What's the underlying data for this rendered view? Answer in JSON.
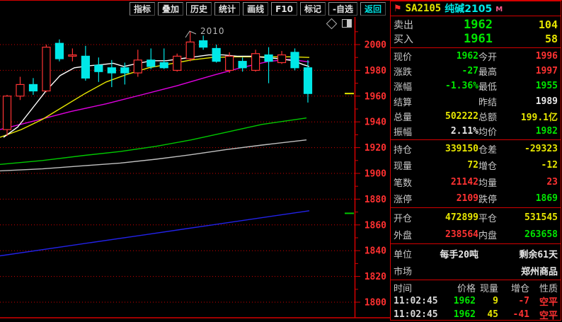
{
  "toolbar": {
    "buttons": [
      {
        "label": "指标"
      },
      {
        "label": "叠加"
      },
      {
        "label": "历史"
      },
      {
        "label": "统计"
      },
      {
        "label": "画线"
      },
      {
        "label": "F10"
      },
      {
        "label": "标记"
      },
      {
        "label": "-自选"
      },
      {
        "label": "返回",
        "accent": true
      }
    ]
  },
  "chart": {
    "annotation": {
      "text": "2010"
    },
    "icons": [
      {
        "name": "diamond-icon"
      },
      {
        "name": "split-square-icon"
      }
    ],
    "colors": {
      "axis": "#d40000",
      "label": "#ff3030",
      "up": "#ff3434",
      "down": "#00e8e8",
      "marker_price": "#e6e600",
      "marker_limit_down": "#00c800"
    }
  },
  "chart_data": {
    "type": "candlestick",
    "title": "纯碱2105 K线",
    "ylim": [
      1800,
      2020
    ],
    "y_ticks": [
      2000,
      1980,
      1960,
      1940,
      1920,
      1900,
      1880,
      1860,
      1840,
      1820,
      1800
    ],
    "grid": "red-dotted-horizontal",
    "legend_position": "none",
    "candles_ohlc_dir": [
      [
        1934,
        1961,
        1929,
        1960,
        "u"
      ],
      [
        1960,
        1975,
        1957,
        1969,
        "u"
      ],
      [
        1969,
        1974,
        1961,
        1964,
        "d"
      ],
      [
        1964,
        2000,
        1963,
        1998,
        "u"
      ],
      [
        2001,
        2004,
        1987,
        1989,
        "d"
      ],
      [
        1991,
        1997,
        1987,
        1992,
        "u"
      ],
      [
        1991,
        1999,
        1972,
        1974,
        "d"
      ],
      [
        1984,
        1990,
        1971,
        1979,
        "d"
      ],
      [
        1982,
        1988,
        1967,
        1978,
        "d"
      ],
      [
        1982,
        1986,
        1969,
        1978,
        "d"
      ],
      [
        1978,
        1996,
        1975,
        1988,
        "u"
      ],
      [
        1988,
        1997,
        1981,
        1983,
        "d"
      ],
      [
        1986,
        1997,
        1981,
        1982,
        "d"
      ],
      [
        1980,
        1993,
        1979,
        1991,
        "u"
      ],
      [
        1989,
        2010,
        1987,
        2002,
        "u"
      ],
      [
        2003,
        2007,
        1996,
        1998,
        "d"
      ],
      [
        1997,
        2000,
        1986,
        1987,
        "d"
      ],
      [
        1980,
        1994,
        1978,
        1991,
        "u"
      ],
      [
        1987,
        1990,
        1979,
        1982,
        "d"
      ],
      [
        1980,
        1996,
        1979,
        1993,
        "u"
      ],
      [
        1992,
        1998,
        1970,
        1987,
        "d"
      ],
      [
        1986,
        1995,
        1985,
        1992,
        "u"
      ],
      [
        1994,
        1997,
        1980,
        1982,
        "d"
      ],
      [
        1982,
        1988,
        1955,
        1962,
        "d"
      ]
    ],
    "series": [
      {
        "name": "ma-blue",
        "color": "#2222e8",
        "points": [
          [
            0,
            1836
          ],
          [
            100,
            1844
          ],
          [
            200,
            1852
          ],
          [
            300,
            1860
          ],
          [
            437,
            1871
          ]
        ]
      },
      {
        "name": "ma-gray",
        "color": "#c0c0c0",
        "points": [
          [
            0,
            1902
          ],
          [
            60,
            1903.5
          ],
          [
            120,
            1906
          ],
          [
            170,
            1908
          ],
          [
            220,
            1911
          ],
          [
            270,
            1914.5
          ],
          [
            320,
            1918.5
          ],
          [
            370,
            1922
          ],
          [
            433,
            1926
          ]
        ]
      },
      {
        "name": "ma-green",
        "color": "#00c800",
        "points": [
          [
            0,
            1907
          ],
          [
            60,
            1910
          ],
          [
            120,
            1914
          ],
          [
            170,
            1917
          ],
          [
            220,
            1921
          ],
          [
            270,
            1926
          ],
          [
            320,
            1932
          ],
          [
            370,
            1938
          ],
          [
            433,
            1943
          ]
        ]
      },
      {
        "name": "ma-magenta",
        "color": "#e000e0",
        "points": [
          [
            0,
            1934
          ],
          [
            50,
            1941
          ],
          [
            100,
            1948
          ],
          [
            150,
            1954
          ],
          [
            200,
            1961
          ],
          [
            250,
            1968
          ],
          [
            300,
            1976
          ],
          [
            340,
            1982
          ],
          [
            380,
            1987
          ],
          [
            410,
            1988.5
          ],
          [
            437,
            1986.5
          ]
        ]
      },
      {
        "name": "ma-yellow",
        "color": "#e6e600",
        "points": [
          [
            0,
            1928
          ],
          [
            30,
            1934
          ],
          [
            60,
            1942
          ],
          [
            90,
            1952
          ],
          [
            120,
            1962
          ],
          [
            150,
            1971
          ],
          [
            180,
            1977
          ],
          [
            210,
            1982
          ],
          [
            240,
            1985
          ],
          [
            270,
            1988
          ],
          [
            300,
            1990
          ],
          [
            330,
            1990.5
          ],
          [
            370,
            1990.5
          ],
          [
            415,
            1990.5
          ],
          [
            437,
            1990
          ]
        ]
      },
      {
        "name": "ma-white",
        "color": "#ffffff",
        "points": [
          [
            5,
            1928
          ],
          [
            25,
            1936
          ],
          [
            45,
            1950
          ],
          [
            65,
            1964
          ],
          [
            85,
            1976
          ],
          [
            105,
            1982
          ],
          [
            125,
            1983.5
          ],
          [
            145,
            1984.5
          ],
          [
            160,
            1985.5
          ],
          [
            175,
            1983
          ],
          [
            195,
            1985.5
          ],
          [
            215,
            1987.5
          ],
          [
            235,
            1987.5
          ],
          [
            255,
            1989
          ],
          [
            275,
            1990.5
          ],
          [
            295,
            1992
          ],
          [
            315,
            1992
          ],
          [
            335,
            1991
          ],
          [
            355,
            1991
          ],
          [
            375,
            1990
          ],
          [
            395,
            1989
          ],
          [
            415,
            1987.5
          ],
          [
            428,
            1984.5
          ],
          [
            437,
            1983
          ]
        ]
      }
    ],
    "axis_markers": [
      {
        "name": "current-price-marker",
        "price": 1962,
        "color": "#e6e600"
      },
      {
        "name": "limit-down-marker",
        "price": 1869,
        "color": "#00c800"
      }
    ],
    "annotation_high": {
      "text": "2010",
      "at_candle": 15
    }
  },
  "quote": {
    "header": {
      "symbol": "SA2105",
      "name": "纯碱2105",
      "period_badge": "M",
      "flag": "⚑"
    },
    "bidask": [
      {
        "label": "卖出",
        "price": "1962",
        "qty": "104"
      },
      {
        "label": "买入",
        "price": "1961",
        "qty": "58"
      }
    ],
    "sections": [
      {
        "rows": [
          {
            "l1": "现价",
            "v1": "1962",
            "c1": "green",
            "l2": "今开",
            "v2": "1996",
            "c2": "red"
          },
          {
            "l1": "涨跌",
            "v1": "-27",
            "c1": "green",
            "l2": "最高",
            "v2": "1997",
            "c2": "red"
          },
          {
            "l1": "涨幅",
            "v1": "-1.36%",
            "c1": "green",
            "l2": "最低",
            "v2": "1955",
            "c2": "green"
          },
          {
            "l1": "结算",
            "v1": "",
            "c1": "white",
            "l2": "昨结",
            "v2": "1989",
            "c2": "white"
          },
          {
            "l1": "总量",
            "v1": "502222",
            "c1": "yellow",
            "l2": "总额",
            "v2": "199.1亿",
            "c2": "yellow"
          },
          {
            "l1": "振幅",
            "v1": "2.11%",
            "c1": "white",
            "l2": "均价",
            "v2": "1982",
            "c2": "green"
          }
        ]
      },
      {
        "rows": [
          {
            "l1": "持仓",
            "v1": "339150",
            "c1": "yellow",
            "l2": "仓差",
            "v2": "-29323",
            "c2": "yellow"
          },
          {
            "l1": "现量",
            "v1": "72",
            "c1": "yellow",
            "l2": "增仓",
            "v2": "-12",
            "c2": "yellow"
          },
          {
            "l1": "笔数",
            "v1": "21142",
            "c1": "red",
            "l2": "均量",
            "v2": "23",
            "c2": "red"
          },
          {
            "l1": "涨停",
            "v1": "2109",
            "c1": "red",
            "l2": "跌停",
            "v2": "1869",
            "c2": "green"
          }
        ]
      },
      {
        "rows": [
          {
            "l1": "开仓",
            "v1": "472899",
            "c1": "yellow",
            "l2": "平仓",
            "v2": "531545",
            "c2": "yellow"
          },
          {
            "l1": "外盘",
            "v1": "238564",
            "c1": "red",
            "l2": "内盘",
            "v2": "263658",
            "c2": "green"
          }
        ]
      },
      {
        "rows": [
          {
            "l1": "单位",
            "v1": "每手20吨",
            "c1": "white",
            "l2": "",
            "v2": "剩余61天",
            "c2": "white"
          },
          {
            "l1": "市场",
            "v1": "",
            "c1": "white",
            "l2": "",
            "v2": "郑州商品",
            "c2": "white"
          }
        ]
      }
    ],
    "ticks": {
      "headers": [
        "时间",
        "价格",
        "现量",
        "增仓",
        "性质"
      ],
      "rows": [
        {
          "time": "11:02:45",
          "price": "1962",
          "pc": "green",
          "vol": "9",
          "vc": "yellow",
          "oi": "-7",
          "oc": "red",
          "nature": "空平",
          "nc": "red"
        },
        {
          "time": "11:02:45",
          "price": "1962",
          "pc": "green",
          "vol": "45",
          "vc": "yellow",
          "oi": "-41",
          "oc": "red",
          "nature": "空平",
          "nc": "red"
        }
      ]
    }
  }
}
